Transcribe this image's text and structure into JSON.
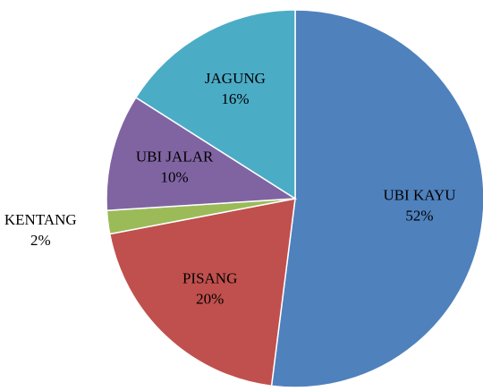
{
  "chart_data": {
    "type": "pie",
    "categories": [
      "UBI KAYU",
      "PISANG",
      "KENTANG",
      "UBI JALAR",
      "JAGUNG"
    ],
    "values": [
      52,
      20,
      2,
      10,
      16
    ],
    "value_labels": [
      "52%",
      "20%",
      "2%",
      "10%",
      "16%"
    ],
    "colors": [
      "#4f81bd",
      "#c0504d",
      "#9bbb59",
      "#8064a2",
      "#4bacc6"
    ]
  }
}
